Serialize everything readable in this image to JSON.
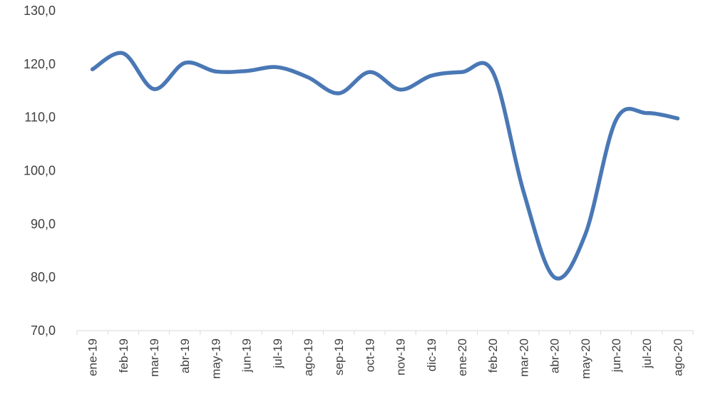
{
  "chart_data": {
    "type": "line",
    "title": "",
    "xlabel": "",
    "ylabel": "",
    "ylim": [
      70,
      130
    ],
    "yticks": [
      "70,0",
      "80,0",
      "90,0",
      "100,0",
      "110,0",
      "120,0",
      "130,0"
    ],
    "grid": false,
    "legend": "none",
    "categories": [
      "ene-19",
      "feb-19",
      "mar-19",
      "abr-19",
      "may-19",
      "jun-19",
      "jul-19",
      "ago-19",
      "sep-19",
      "oct-19",
      "nov-19",
      "dic-19",
      "ene-20",
      "feb-20",
      "mar-20",
      "abr-20",
      "may-20",
      "jun-20",
      "jul-20",
      "ago-20"
    ],
    "series": [
      {
        "color": "#4a78b5",
        "values": [
          119.0,
          122.0,
          115.3,
          120.2,
          118.6,
          118.7,
          119.4,
          117.5,
          114.5,
          118.5,
          115.2,
          117.8,
          118.5,
          118.5,
          96.0,
          80.0,
          88.0,
          109.5,
          110.8,
          109.8
        ]
      }
    ]
  }
}
